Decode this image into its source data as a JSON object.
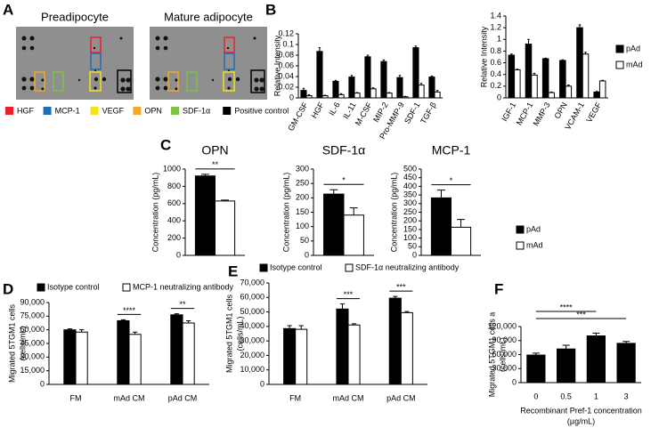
{
  "panel_labels": [
    "A",
    "B",
    "C",
    "D",
    "E",
    "F"
  ],
  "blot": {
    "titles": [
      "Preadipocyte",
      "Mature adipocyte"
    ],
    "legend": [
      {
        "name": "HGF",
        "color": "#e8202a"
      },
      {
        "name": "MCP-1",
        "color": "#1f6fb5"
      },
      {
        "name": "VEGF",
        "color": "#f3e21b"
      },
      {
        "name": "OPN",
        "color": "#f5a623"
      },
      {
        "name": "SDF-1α",
        "color": "#7dc242"
      },
      {
        "name": "Positive control",
        "color": "#000000"
      }
    ]
  },
  "chart_data": [
    {
      "type": "bar",
      "categories": [
        "GM-CSF",
        "HGF",
        "IL-6",
        "IL-11",
        "M-CSF",
        "MIP-2",
        "Pro-MMP-9",
        "SDF-1",
        "TGF-β"
      ],
      "series": [
        {
          "name": "pAd",
          "color": "#000000",
          "values": [
            0.014,
            0.087,
            0.031,
            0.039,
            0.077,
            0.068,
            0.038,
            0.094,
            0.039
          ],
          "errors": [
            0.004,
            0.007,
            0.002,
            0.003,
            0.003,
            0.003,
            0.004,
            0.003,
            0.002
          ]
        },
        {
          "name": "mAd",
          "color": "#ffffff",
          "values": [
            0.004,
            0.004,
            0.006,
            0.009,
            0.017,
            0.009,
            0.002,
            0.024,
            0.011
          ],
          "errors": [
            0.002,
            0.001,
            0.002,
            0.001,
            0.002,
            0.001,
            0.001,
            0.003,
            0.003
          ]
        }
      ],
      "ylim": [
        0,
        0.12
      ],
      "yticks": [
        0,
        0.02,
        0.04,
        0.06,
        0.08,
        0.1,
        0.12
      ],
      "ylabel": "Relative Intensity",
      "legend": "none"
    },
    {
      "type": "bar",
      "categories": [
        "IGF-1",
        "MCP-1",
        "MMP-3",
        "OPN",
        "VCAM-1",
        "VEGF"
      ],
      "series": [
        {
          "name": "pAd",
          "color": "#000000",
          "values": [
            0.73,
            0.92,
            0.67,
            0.64,
            1.2,
            0.1
          ],
          "errors": [
            0.02,
            0.08,
            0.01,
            0.01,
            0.05,
            0.01
          ]
        },
        {
          "name": "mAd",
          "color": "#ffffff",
          "values": [
            0.48,
            0.39,
            0.09,
            0.2,
            0.75,
            0.29
          ],
          "errors": [
            0.01,
            0.03,
            0.01,
            0.02,
            0.03,
            0.01
          ]
        }
      ],
      "ylim": [
        0,
        1.4
      ],
      "yticks": [
        0,
        0.2,
        0.4,
        0.6,
        0.8,
        1,
        1.2,
        1.4
      ],
      "ylabel": "Relative Intensity",
      "legend": "right"
    },
    {
      "type": "bar",
      "title": "OPN",
      "categories": [
        null
      ],
      "series": [
        {
          "name": "pAd",
          "color": "#000000",
          "values": [
            920
          ],
          "errors": [
            20
          ]
        },
        {
          "name": "mAd",
          "color": "#ffffff",
          "values": [
            630
          ],
          "errors": [
            10
          ]
        }
      ],
      "ylim": [
        0,
        1000
      ],
      "yticks": [
        0,
        200,
        400,
        600,
        800,
        1000
      ],
      "ylabel": "Concentration (pg/mL)",
      "legend": "none",
      "significance": [
        "**"
      ]
    },
    {
      "type": "bar",
      "title": "SDF-1α",
      "categories": [
        null
      ],
      "series": [
        {
          "name": "pAd",
          "color": "#000000",
          "values": [
            213
          ],
          "errors": [
            15
          ]
        },
        {
          "name": "mAd",
          "color": "#ffffff",
          "values": [
            140
          ],
          "errors": [
            25
          ]
        }
      ],
      "ylim": [
        0,
        300
      ],
      "yticks": [
        0,
        50,
        100,
        150,
        200,
        250,
        300
      ],
      "ylabel": "Concentration (pg/mL)",
      "legend": "none",
      "significance": [
        "*"
      ]
    },
    {
      "type": "bar",
      "title": "MCP-1",
      "categories": [
        null
      ],
      "series": [
        {
          "name": "pAd",
          "color": "#000000",
          "values": [
            333
          ],
          "errors": [
            45
          ]
        },
        {
          "name": "mAd",
          "color": "#ffffff",
          "values": [
            163
          ],
          "errors": [
            45
          ]
        }
      ],
      "ylim": [
        0,
        500
      ],
      "yticks": [
        0,
        50,
        100,
        150,
        200,
        250,
        300,
        350,
        400,
        450,
        500
      ],
      "ylabel": "Concentration (pg/mL)",
      "legend": "right",
      "significance": [
        "*"
      ]
    },
    {
      "type": "bar",
      "categories": [
        "FM",
        "mAd CM",
        "pAd CM"
      ],
      "series": [
        {
          "name": "Isotype control",
          "color": "#000000",
          "values": [
            60000,
            70000,
            76500
          ],
          "errors": [
            1000,
            1000,
            1200
          ]
        },
        {
          "name": "MCP-1 neutralizing antibody",
          "color": "#ffffff",
          "values": [
            57500,
            55000,
            67500
          ],
          "errors": [
            2500,
            2500,
            2500
          ]
        }
      ],
      "ylim": [
        0,
        90000
      ],
      "yticks": [
        0,
        {
          "value": 15000,
          "label": "15,000"
        },
        {
          "value": 30000,
          "label": "30,000"
        },
        {
          "value": 45000,
          "label": "45,000"
        },
        {
          "value": 60000,
          "label": "60,000"
        },
        {
          "value": 75000,
          "label": "75,000"
        },
        {
          "value": 90000,
          "label": "90,000"
        }
      ],
      "ylabel": [
        "Migrated 5TGM1 cells",
        "(cells/mL)"
      ],
      "legend": "top",
      "significance": [
        null,
        "****",
        "**"
      ]
    },
    {
      "type": "bar",
      "categories": [
        "FM",
        "mAd CM",
        "pAd CM"
      ],
      "series": [
        {
          "name": "Isotype control",
          "color": "#000000",
          "values": [
            38500,
            52000,
            59500
          ],
          "errors": [
            2000,
            3500,
            1200
          ]
        },
        {
          "name": "SDF-1α neutralizing antibody",
          "color": "#ffffff",
          "values": [
            38000,
            41000,
            49500
          ],
          "errors": [
            2500,
            800,
            800
          ]
        }
      ],
      "ylim": [
        0,
        70000
      ],
      "yticks": [
        0,
        {
          "value": 10000,
          "label": "10,000"
        },
        {
          "value": 20000,
          "label": "20,000"
        },
        {
          "value": 30000,
          "label": "30,000"
        },
        {
          "value": 40000,
          "label": "40,000"
        },
        {
          "value": 50000,
          "label": "50,000"
        },
        {
          "value": 60000,
          "label": "60,000"
        },
        {
          "value": 70000,
          "label": "70,000"
        }
      ],
      "ylabel": [
        "Migrated 5TGM1 cells",
        "(cells/mL)"
      ],
      "legend": "top",
      "significance": [
        null,
        "***",
        "***"
      ]
    },
    {
      "type": "bar",
      "categories": [
        "0",
        "0.5",
        "1",
        "3"
      ],
      "series": [
        {
          "name": "Migrated 5TGM1 cells",
          "color": "#000000",
          "values": [
            59000,
            72000,
            100000,
            84000
          ],
          "errors": [
            4000,
            8000,
            6000,
            4000
          ]
        }
      ],
      "ylim": [
        0,
        120000
      ],
      "yticks": [
        0,
        {
          "value": 30000,
          "label": "30,000"
        },
        {
          "value": 60000,
          "label": "60,000"
        },
        {
          "value": 90000,
          "label": "90,000"
        },
        {
          "value": 120000,
          "label": "120,000"
        }
      ],
      "ylabel": [
        "Migrated 5TGM1 cells a",
        "(cells/mL)"
      ],
      "xlabel": [
        "Recombinant Pref-1 concentration",
        "(µg/mL)"
      ],
      "legend": "none",
      "significance": [
        null,
        null,
        "****",
        "***"
      ]
    }
  ]
}
